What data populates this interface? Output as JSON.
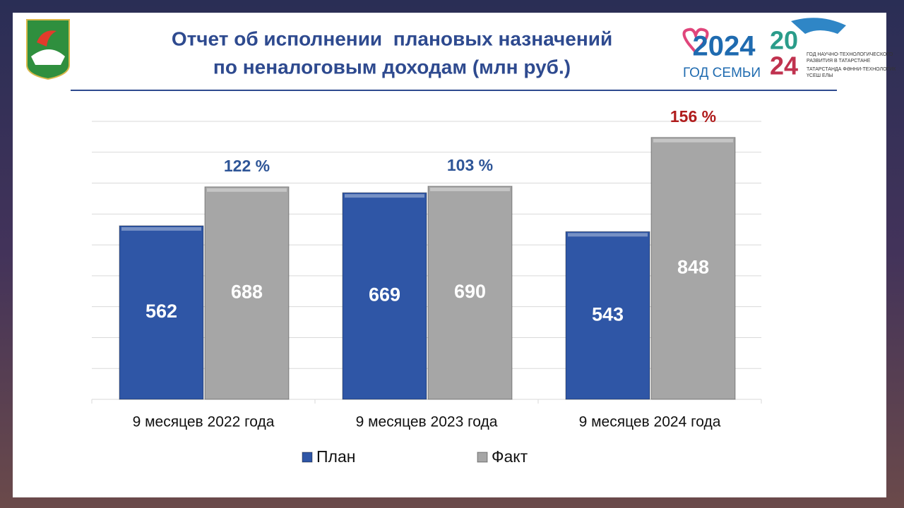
{
  "header": {
    "logo_texts": [
      "2024",
      "ГОД СЕМЬИ",
      "20",
      "24",
      "ГОД НАУЧНО-ТЕХНОЛОГИЧЕСКОГО",
      "РАЗВИТИЯ В ТАТАРСТАНЕ",
      "ТАТАРСТАНДА ФӘННИ-ТЕХНОЛОГИК",
      "ҮСЕШ ЕЛЫ"
    ]
  },
  "chart_data": {
    "type": "bar",
    "title": [
      "Отчет об исполнении  плановых назначений",
      "по неналоговым доходам (млн руб.)"
    ],
    "categories": [
      "9 месяцев 2022 года",
      "9 месяцев 2023 года",
      "9 месяцев 2024 года"
    ],
    "series": [
      {
        "name": "План",
        "color": "#2f56a6",
        "values": [
          562,
          669,
          543
        ]
      },
      {
        "name": "Факт",
        "color": "#a6a6a6",
        "values": [
          688,
          690,
          848
        ]
      }
    ],
    "annotations": [
      {
        "text": "122 %",
        "color": "#2e5597"
      },
      {
        "text": "103 %",
        "color": "#2e5597"
      },
      {
        "text": "156 %",
        "color": "#b01c1c"
      }
    ],
    "ylim": [
      0,
      900
    ],
    "yticks": [
      0,
      100,
      200,
      300,
      400,
      500,
      600,
      700,
      800,
      900
    ],
    "ytick_labels": false,
    "grid": true,
    "legend": "bottom"
  }
}
